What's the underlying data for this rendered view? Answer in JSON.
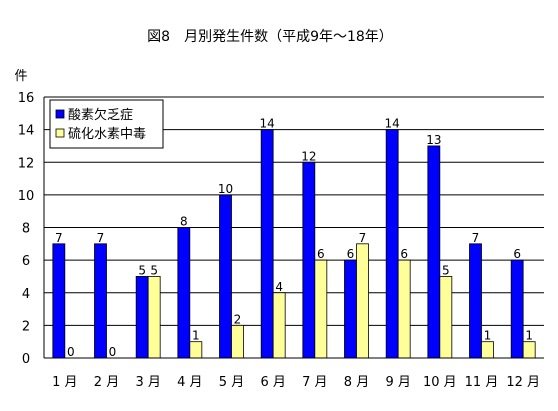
{
  "chart_data": {
    "type": "bar",
    "title": "図8　月別発生件数（平成9年～18年）",
    "ylabel": "件",
    "xlabel": "",
    "ylim": [
      0,
      16
    ],
    "yticks": [
      "0",
      "2",
      "4",
      "6",
      "8",
      "10",
      "12",
      "14",
      "16"
    ],
    "grid": true,
    "legend_position": "top-left",
    "categories": [
      "1 月",
      "2 月",
      "3 月",
      "4 月",
      "5 月",
      "6 月",
      "7 月",
      "8 月",
      "9 月",
      "10 月",
      "11 月",
      "12 月"
    ],
    "series": [
      {
        "name": "酸素欠乏症",
        "color": "#0000ff",
        "values": [
          7,
          7,
          5,
          8,
          10,
          14,
          12,
          6,
          14,
          13,
          7,
          6
        ]
      },
      {
        "name": "硫化水素中毒",
        "color": "#ffff99",
        "values": [
          0,
          0,
          5,
          1,
          2,
          4,
          6,
          7,
          6,
          5,
          1,
          1
        ]
      }
    ]
  }
}
